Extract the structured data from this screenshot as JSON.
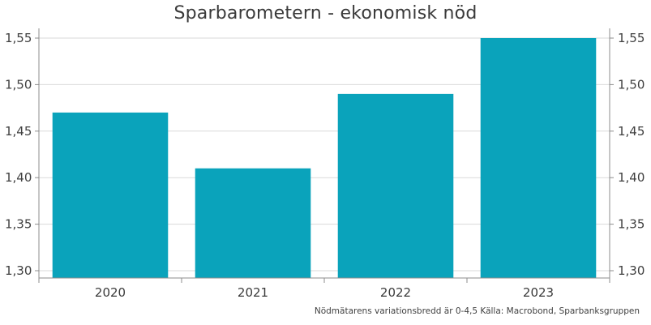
{
  "chart_data": {
    "type": "bar",
    "title": "Sparbarometern - ekonomisk nöd",
    "categories": [
      "2020",
      "2021",
      "2022",
      "2023"
    ],
    "values": [
      1.47,
      1.41,
      1.49,
      1.55
    ],
    "ylim": [
      1.3,
      1.55
    ],
    "yticks": [
      "1,30",
      "1,35",
      "1,40",
      "1,45",
      "1,50",
      "1,55"
    ],
    "ytick_values": [
      1.3,
      1.35,
      1.4,
      1.45,
      1.5,
      1.55
    ],
    "xlabel": "",
    "ylabel": "",
    "grid": true,
    "legend": "none",
    "colors": {
      "bar": "#0aa3bb",
      "grid": "#d9d9d9",
      "axis": "#8c8c8c"
    },
    "note": "Nödmätarens variationsbredd är 0-4,5   Källa: Macrobond, Sparbanksgruppen"
  }
}
